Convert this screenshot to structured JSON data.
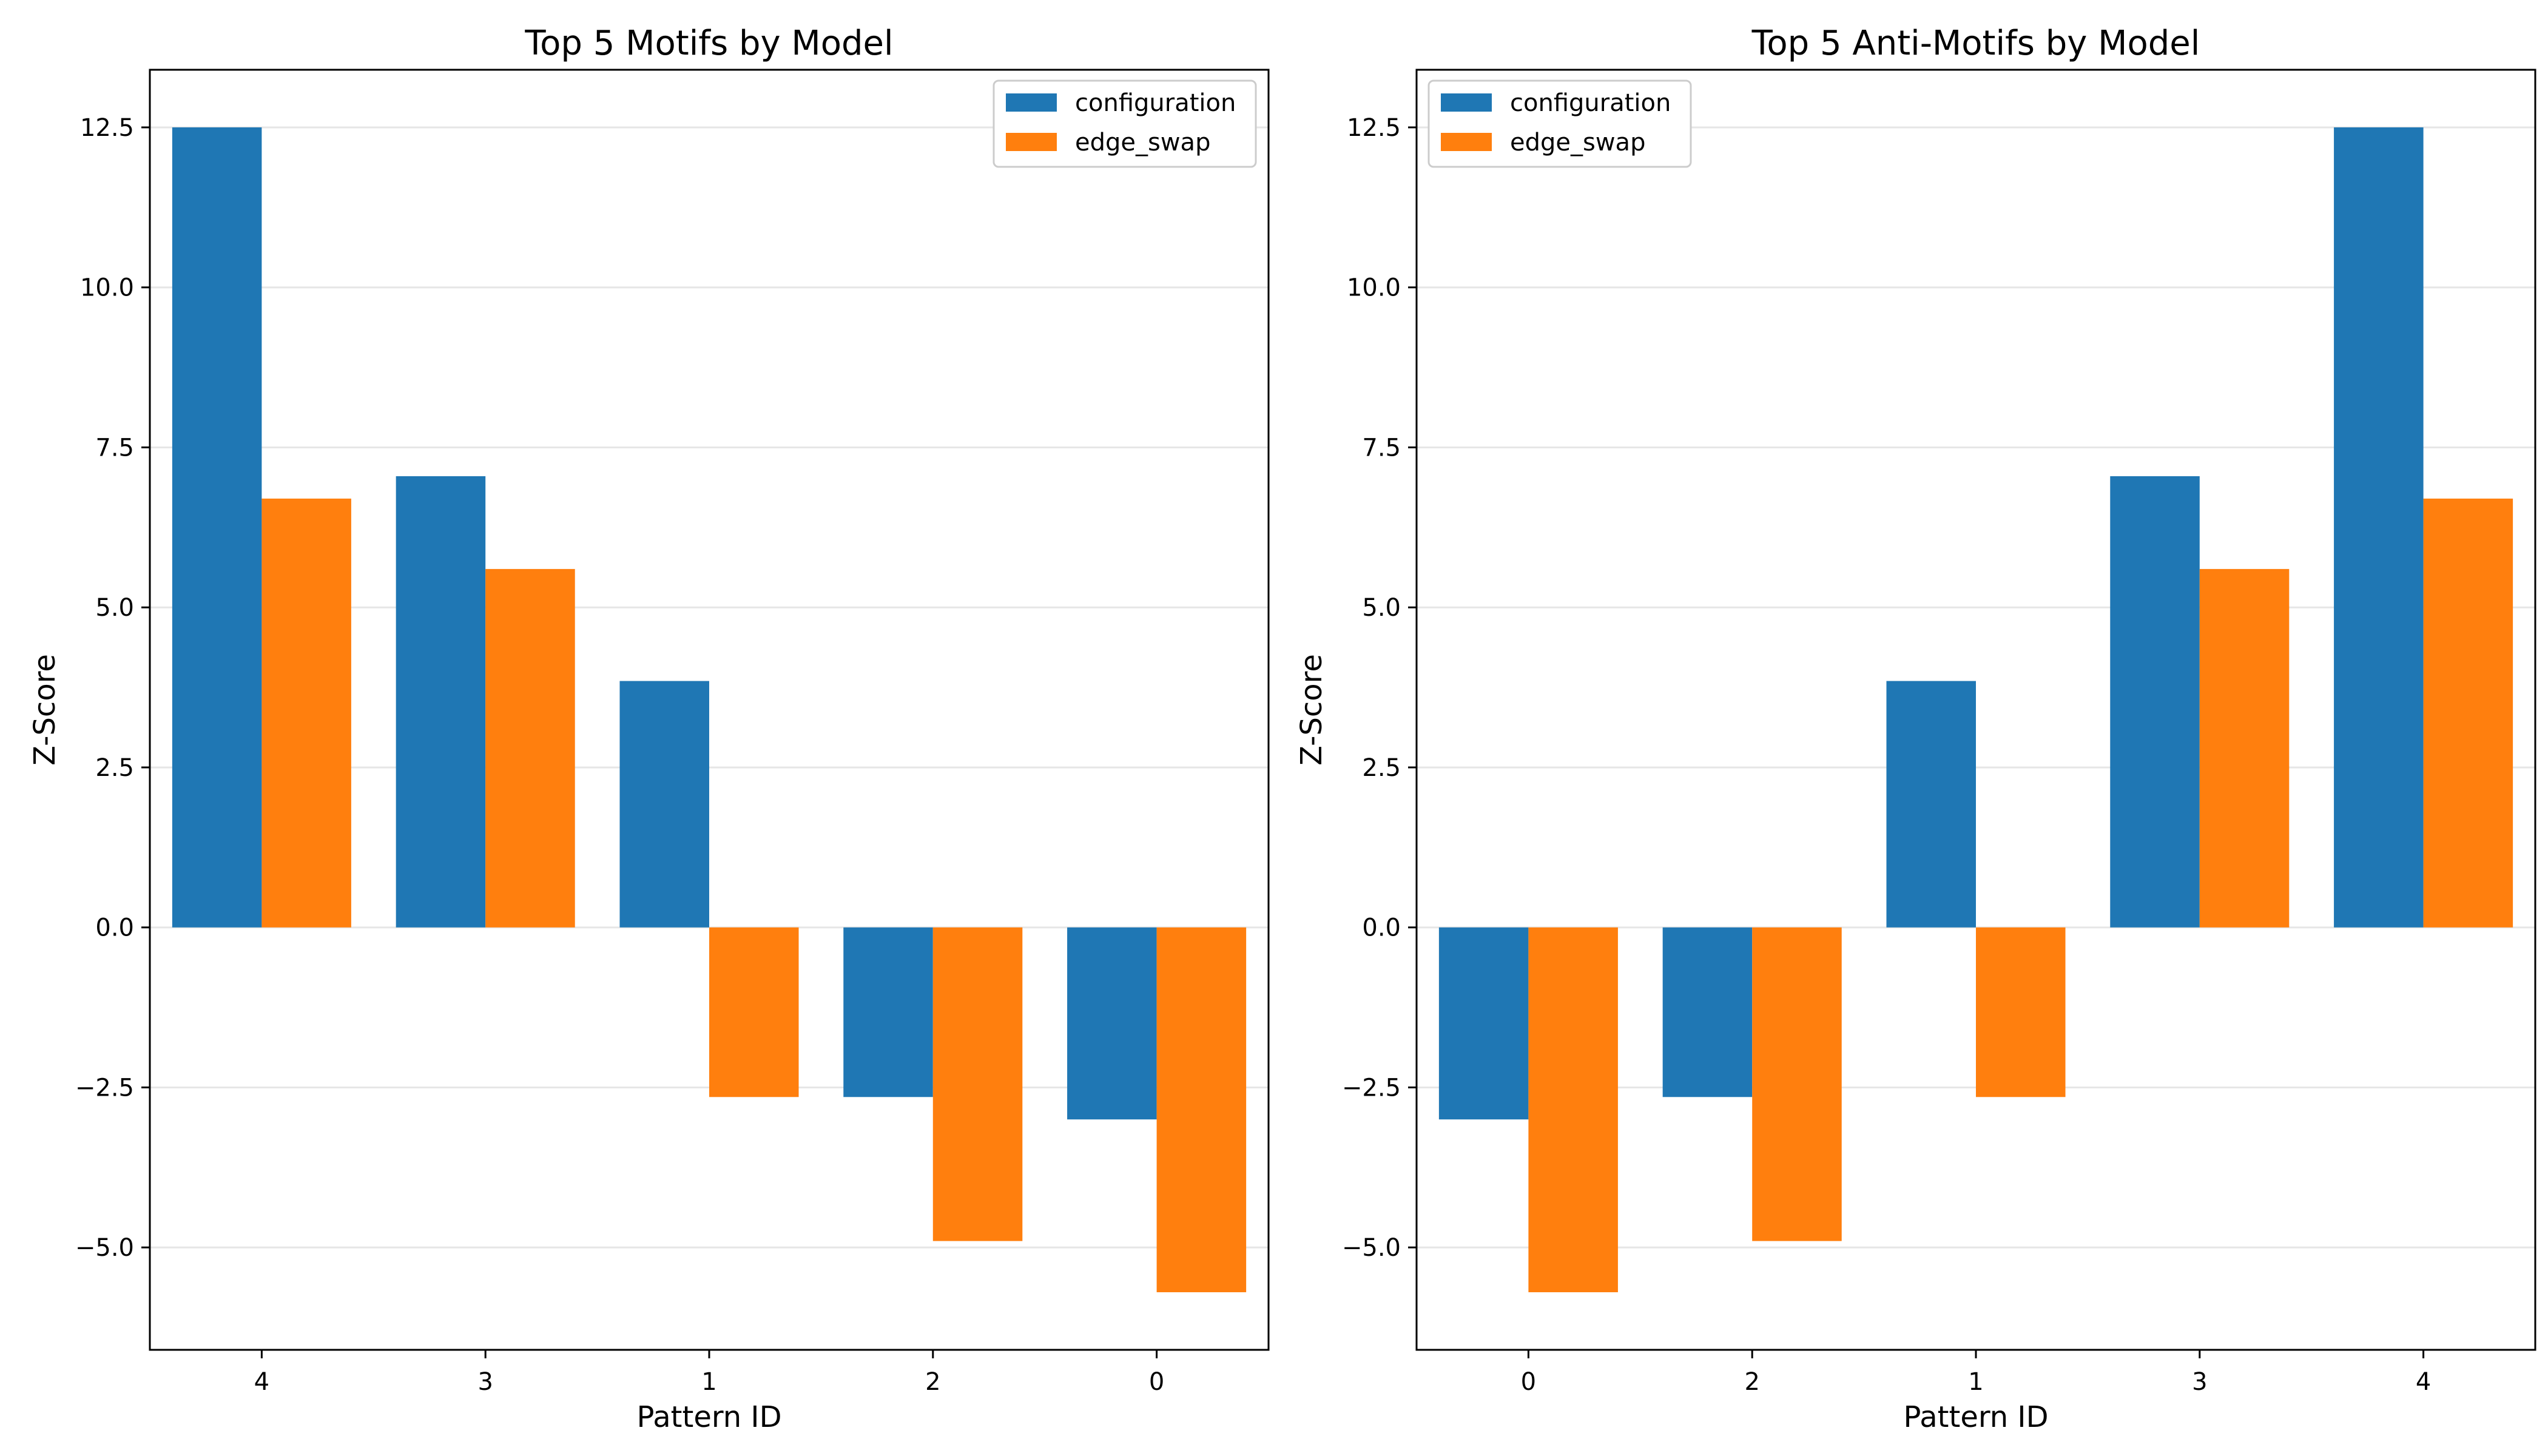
{
  "colors": {
    "configuration": "#1f77b4",
    "edge_swap": "#ff7f0e",
    "grid": "#e6e6e6",
    "axis": "#000000"
  },
  "chart_data": [
    {
      "type": "bar",
      "title": "Top 5 Motifs by Model",
      "xlabel": "Pattern ID",
      "ylabel": "Z-Score",
      "categories": [
        "4",
        "3",
        "1",
        "2",
        "0"
      ],
      "series": [
        {
          "name": "configuration",
          "values": [
            12.5,
            7.05,
            3.85,
            -2.65,
            -3.0
          ]
        },
        {
          "name": "edge_swap",
          "values": [
            6.7,
            5.6,
            -2.65,
            -4.9,
            -5.7
          ]
        }
      ],
      "ylim": [
        -6.6,
        13.4
      ],
      "yticks": [
        "12.5",
        "10.0",
        "7.5",
        "5.0",
        "2.5",
        "0.0",
        "−2.5",
        "−5.0"
      ],
      "ytick_values": [
        12.5,
        10.0,
        7.5,
        5.0,
        2.5,
        0.0,
        -2.5,
        -5.0
      ],
      "grid": "y",
      "legend_position": "upper right"
    },
    {
      "type": "bar",
      "title": "Top 5 Anti-Motifs by Model",
      "xlabel": "Pattern ID",
      "ylabel": "Z-Score",
      "categories": [
        "0",
        "2",
        "1",
        "3",
        "4"
      ],
      "series": [
        {
          "name": "configuration",
          "values": [
            -3.0,
            -2.65,
            3.85,
            7.05,
            12.5
          ]
        },
        {
          "name": "edge_swap",
          "values": [
            -5.7,
            -4.9,
            -2.65,
            5.6,
            6.7
          ]
        }
      ],
      "ylim": [
        -6.6,
        13.4
      ],
      "yticks": [
        "12.5",
        "10.0",
        "7.5",
        "5.0",
        "2.5",
        "0.0",
        "−2.5",
        "−5.0"
      ],
      "ytick_values": [
        12.5,
        10.0,
        7.5,
        5.0,
        2.5,
        0.0,
        -2.5,
        -5.0
      ],
      "grid": "y",
      "legend_position": "upper left"
    }
  ]
}
